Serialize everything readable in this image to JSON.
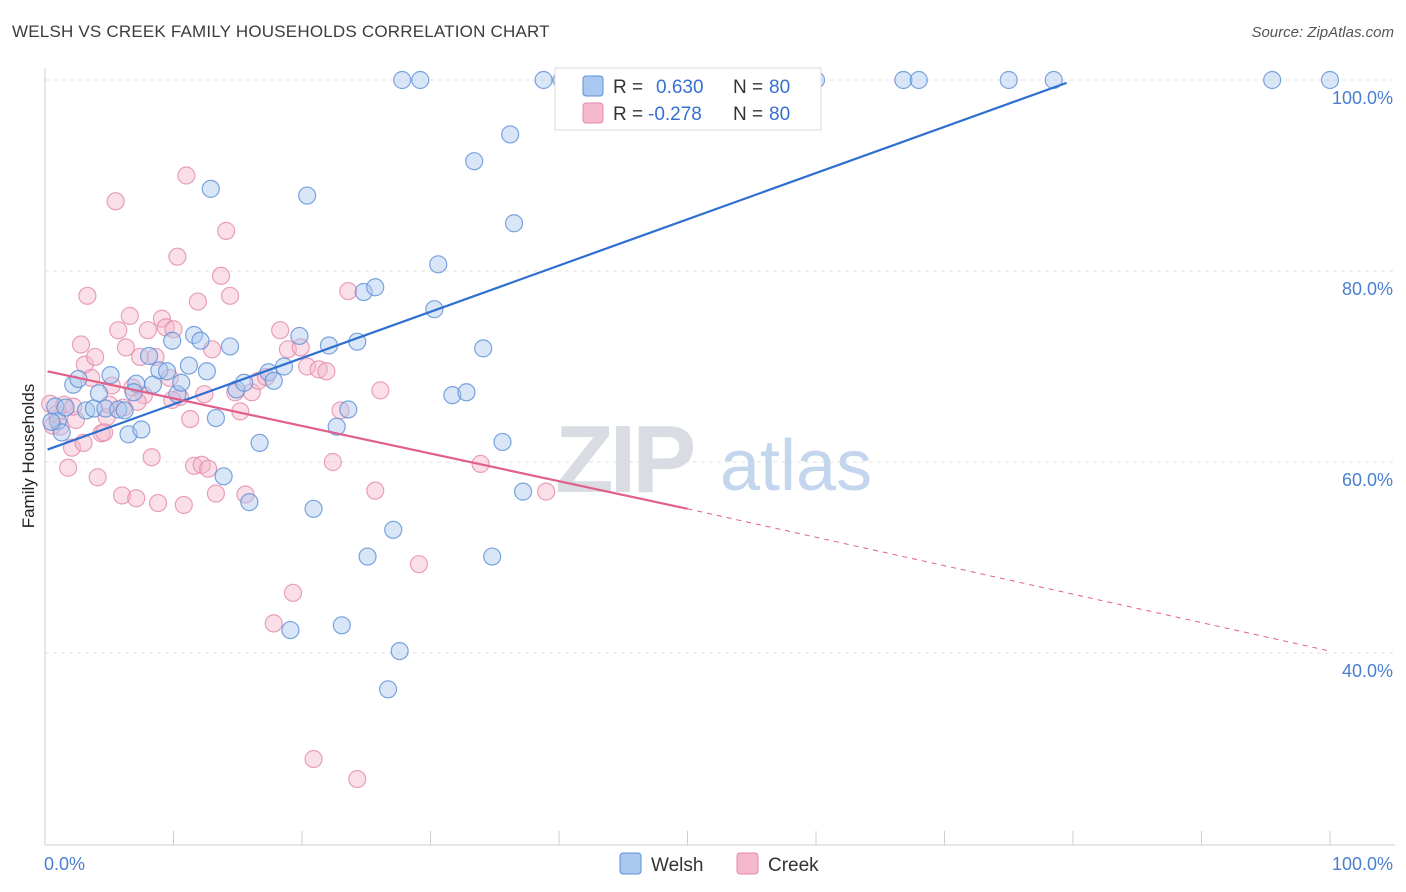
{
  "title": "WELSH VS CREEK FAMILY HOUSEHOLDS CORRELATION CHART",
  "source": "Source: ZipAtlas.com",
  "watermark": {
    "zip": "ZIP",
    "atlas": "atlas"
  },
  "colors": {
    "welsh_fill": "#aac8f0",
    "welsh_stroke": "#5b8fd6",
    "welsh_line": "#2e6fd0",
    "creek_fill": "#f5b8cc",
    "creek_stroke": "#e58aa8",
    "creek_line": "#e0608a",
    "grid": "#e2e2e2",
    "tick_label": "#4a7fd0"
  },
  "legend": {
    "rows": [
      {
        "r_label": "R =",
        "r_value": "0.630",
        "n_label": "N =",
        "n_value": "80"
      },
      {
        "r_label": "R =",
        "r_value": "-0.278",
        "n_label": "N =",
        "n_value": "80"
      }
    ]
  },
  "chart_data": {
    "type": "scatter",
    "title": "WELSH VS CREEK FAMILY HOUSEHOLDS CORRELATION CHART",
    "xlabel": "",
    "ylabel": "Family Households",
    "xlim": [
      0,
      100
    ],
    "ylim": [
      20,
      100
    ],
    "x_tick_labels": [
      "0.0%",
      "100.0%"
    ],
    "y_ticks": [
      {
        "value": 100,
        "label": "100.0%"
      },
      {
        "value": 80,
        "label": "80.0%"
      },
      {
        "value": 60,
        "label": "60.0%"
      },
      {
        "value": 40,
        "label": "40.0%"
      }
    ],
    "grid": true,
    "legend_position": "top-center",
    "series": [
      {
        "name": "Welsh",
        "r": 0.63,
        "n": 80,
        "trend": {
          "x0": 0.2,
          "y0": 61.3,
          "x1": 79.5,
          "y1": 99.7
        },
        "points": [
          [
            0.8,
            65.8
          ],
          [
            1.0,
            64.3
          ],
          [
            1.3,
            63.1
          ],
          [
            1.6,
            65.7
          ],
          [
            2.2,
            68.1
          ],
          [
            2.6,
            68.7
          ],
          [
            3.2,
            65.4
          ],
          [
            3.8,
            65.6
          ],
          [
            4.2,
            67.2
          ],
          [
            4.7,
            65.6
          ],
          [
            5.1,
            69.1
          ],
          [
            5.7,
            65.5
          ],
          [
            6.2,
            65.4
          ],
          [
            6.5,
            62.9
          ],
          [
            7.1,
            68.2
          ],
          [
            7.5,
            63.4
          ],
          [
            8.1,
            71.1
          ],
          [
            8.4,
            68.1
          ],
          [
            8.9,
            69.6
          ],
          [
            9.5,
            69.5
          ],
          [
            9.9,
            72.7
          ],
          [
            10.3,
            67.1
          ],
          [
            10.6,
            68.3
          ],
          [
            11.2,
            70.1
          ],
          [
            11.6,
            73.3
          ],
          [
            12.1,
            72.7
          ],
          [
            12.6,
            69.5
          ],
          [
            13.3,
            64.6
          ],
          [
            13.9,
            58.5
          ],
          [
            14.4,
            72.1
          ],
          [
            14.9,
            67.6
          ],
          [
            15.5,
            68.3
          ],
          [
            15.9,
            55.8
          ],
          [
            16.7,
            62.0
          ],
          [
            17.4,
            69.4
          ],
          [
            17.8,
            68.5
          ],
          [
            18.6,
            70.0
          ],
          [
            19.1,
            42.4
          ],
          [
            19.8,
            73.2
          ],
          [
            20.4,
            87.9
          ],
          [
            20.9,
            55.1
          ],
          [
            22.1,
            72.2
          ],
          [
            22.7,
            63.7
          ],
          [
            23.1,
            42.9
          ],
          [
            23.6,
            65.5
          ],
          [
            24.3,
            72.6
          ],
          [
            24.8,
            77.8
          ],
          [
            25.1,
            50.1
          ],
          [
            25.7,
            78.3
          ],
          [
            26.7,
            36.2
          ],
          [
            27.1,
            52.9
          ],
          [
            27.6,
            40.2
          ],
          [
            27.8,
            100.0
          ],
          [
            29.2,
            100.0
          ],
          [
            30.3,
            76.0
          ],
          [
            30.6,
            80.7
          ],
          [
            31.7,
            67.0
          ],
          [
            32.8,
            67.3
          ],
          [
            33.4,
            91.5
          ],
          [
            34.1,
            71.9
          ],
          [
            34.8,
            50.1
          ],
          [
            35.6,
            62.1
          ],
          [
            36.2,
            94.3
          ],
          [
            36.5,
            85.0
          ],
          [
            37.2,
            56.9
          ],
          [
            38.8,
            100.0
          ],
          [
            40.2,
            100.0
          ],
          [
            41.6,
            100.0
          ],
          [
            47.5,
            100.0
          ],
          [
            55.0,
            100.0
          ],
          [
            60.0,
            100.0
          ],
          [
            66.8,
            100.0
          ],
          [
            68.0,
            100.0
          ],
          [
            75.0,
            100.0
          ],
          [
            78.5,
            100.0
          ],
          [
            95.5,
            100.0
          ],
          [
            100.0,
            100.0
          ],
          [
            0.5,
            64.2
          ],
          [
            12.9,
            88.6
          ],
          [
            6.9,
            67.3
          ]
        ]
      },
      {
        "name": "Creek",
        "r": -0.278,
        "n": 80,
        "trend": {
          "x0": 0.2,
          "y0": 69.5,
          "x1": 50.0,
          "y1": 55.1
        },
        "trend_dashed": {
          "x0": 50.0,
          "y0": 55.1,
          "x1": 100.0,
          "y1": 40.2
        },
        "points": [
          [
            0.4,
            66.1
          ],
          [
            0.6,
            63.8
          ],
          [
            0.9,
            65.0
          ],
          [
            1.2,
            63.7
          ],
          [
            1.5,
            66.0
          ],
          [
            1.8,
            59.4
          ],
          [
            2.1,
            61.5
          ],
          [
            2.4,
            64.4
          ],
          [
            2.8,
            72.3
          ],
          [
            3.1,
            70.2
          ],
          [
            3.3,
            77.4
          ],
          [
            3.6,
            68.8
          ],
          [
            3.9,
            71.0
          ],
          [
            4.1,
            58.4
          ],
          [
            4.4,
            63.0
          ],
          [
            4.8,
            64.7
          ],
          [
            5.2,
            68.0
          ],
          [
            5.5,
            87.3
          ],
          [
            5.7,
            73.8
          ],
          [
            6.0,
            56.5
          ],
          [
            6.3,
            72.0
          ],
          [
            6.6,
            75.3
          ],
          [
            6.8,
            67.8
          ],
          [
            7.1,
            56.2
          ],
          [
            7.4,
            71.0
          ],
          [
            7.7,
            67.0
          ],
          [
            8.0,
            73.8
          ],
          [
            8.3,
            60.5
          ],
          [
            8.6,
            71.0
          ],
          [
            8.8,
            55.7
          ],
          [
            9.1,
            75.0
          ],
          [
            9.4,
            74.1
          ],
          [
            9.7,
            68.8
          ],
          [
            10.0,
            73.9
          ],
          [
            10.3,
            81.5
          ],
          [
            10.5,
            66.8
          ],
          [
            10.8,
            55.5
          ],
          [
            11.0,
            90.0
          ],
          [
            11.3,
            64.5
          ],
          [
            11.6,
            59.6
          ],
          [
            11.9,
            76.8
          ],
          [
            12.2,
            59.7
          ],
          [
            12.4,
            67.1
          ],
          [
            12.7,
            59.3
          ],
          [
            13.0,
            71.8
          ],
          [
            13.3,
            56.7
          ],
          [
            13.7,
            79.5
          ],
          [
            14.1,
            84.2
          ],
          [
            14.4,
            77.4
          ],
          [
            14.8,
            67.3
          ],
          [
            15.2,
            65.3
          ],
          [
            15.6,
            56.6
          ],
          [
            16.1,
            67.3
          ],
          [
            16.6,
            68.5
          ],
          [
            17.2,
            68.9
          ],
          [
            17.8,
            43.1
          ],
          [
            18.3,
            73.8
          ],
          [
            18.9,
            71.8
          ],
          [
            19.3,
            46.3
          ],
          [
            19.9,
            72.0
          ],
          [
            20.4,
            70.0
          ],
          [
            20.9,
            28.9
          ],
          [
            21.3,
            69.7
          ],
          [
            21.9,
            69.5
          ],
          [
            22.4,
            60.0
          ],
          [
            23.0,
            65.4
          ],
          [
            23.6,
            77.9
          ],
          [
            24.3,
            26.8
          ],
          [
            25.7,
            57.0
          ],
          [
            26.1,
            67.5
          ],
          [
            29.1,
            49.3
          ],
          [
            33.9,
            59.8
          ],
          [
            39.0,
            56.9
          ],
          [
            6.1,
            65.7
          ],
          [
            2.2,
            65.8
          ],
          [
            9.9,
            66.5
          ],
          [
            4.6,
            63.1
          ],
          [
            5.0,
            66.0
          ],
          [
            7.2,
            66.3
          ],
          [
            3.0,
            62.0
          ]
        ]
      }
    ]
  }
}
